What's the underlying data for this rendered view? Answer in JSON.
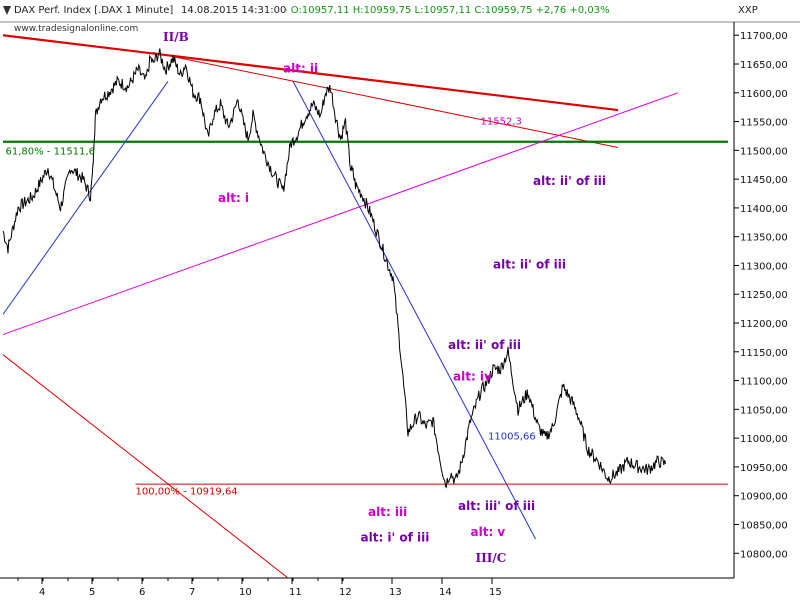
{
  "header": {
    "instrument": "DAX Perf. Index [.DAX  1 Minute]",
    "datetime": "14.08.2015 14:31:00",
    "quote": "- O:10957,11 H:10959,75 L:10957,11 C:10959,75 +2,76 +0,03%",
    "currency": "XXP"
  },
  "watermark": "www.tradesignalonline.com",
  "colors": {
    "price": "#000000",
    "trend_red": "#dd0000",
    "fib_green": "#007700",
    "channel_magenta": "#dd00dd",
    "trend_blue": "#2233cc",
    "label_magenta": "#cc00cc",
    "label_purple": "#7700aa",
    "grid": "#bbbbbb",
    "header_green": "#119911"
  },
  "chart_data": {
    "type": "line",
    "title": "DAX Perf. Index [.DAX  1 Minute]",
    "x_tick_labels": [
      "4",
      "5",
      "6",
      "7",
      "10",
      "11",
      "12",
      "13",
      "14",
      "15"
    ],
    "y_ticks": [
      10800,
      10850,
      10900,
      10950,
      11000,
      11050,
      11100,
      11150,
      11200,
      11250,
      11300,
      11350,
      11400,
      11450,
      11500,
      11550,
      11600,
      11650,
      11700
    ],
    "y_tick_labels": [
      "10800,00",
      "10850,00",
      "10900,00",
      "10950,00",
      "11000,00",
      "11050,00",
      "11100,00",
      "11150,00",
      "11200,00",
      "11250,00",
      "11300,00",
      "11350,00",
      "11400,00",
      "11450,00",
      "11500,00",
      "11550,00",
      "11600,00",
      "11650,00",
      "11700,00"
    ],
    "ylim": [
      10757,
      11723
    ],
    "xlim": [
      0,
      14.5
    ],
    "grid": true,
    "series": [
      {
        "x": [
          0,
          0.1,
          0.3,
          0.6,
          0.9,
          1.15,
          1.35,
          1.6,
          1.75,
          1.8,
          1.82,
          1.85,
          1.95,
          2.1,
          2.3,
          2.5,
          2.7,
          2.85,
          2.95,
          3.0,
          3.12,
          3.25,
          3.4,
          3.55,
          3.65,
          3.8,
          3.95,
          4.1,
          4.2,
          4.35,
          4.5,
          4.6,
          4.7,
          4.8,
          4.9,
          5.0,
          5.1,
          5.2,
          5.4,
          5.6,
          5.75,
          5.9,
          6.05,
          6.2,
          6.35,
          6.45,
          6.55,
          6.65,
          6.75,
          6.85,
          6.95,
          7.0,
          7.05,
          7.2,
          7.35,
          7.55,
          7.7,
          7.8,
          7.95,
          8.1,
          8.3,
          8.45,
          8.6,
          8.75,
          8.85,
          8.95,
          9.05,
          9.15,
          9.35,
          9.55,
          9.7,
          9.8,
          9.95,
          10.1,
          10.3,
          10.5,
          10.7,
          10.85,
          11.0,
          11.2,
          11.4,
          11.5,
          11.7,
          11.9,
          12.1,
          12.3,
          12.5,
          12.7,
          12.9,
          13.1,
          13.25
        ],
        "y": [
          11360,
          11330,
          11400,
          11420,
          11470,
          11400,
          11470,
          11450,
          11420,
          11470,
          11520,
          11560,
          11590,
          11600,
          11620,
          11610,
          11640,
          11620,
          11660,
          11650,
          11670,
          11640,
          11660,
          11630,
          11650,
          11600,
          11590,
          11520,
          11560,
          11580,
          11540,
          11560,
          11590,
          11550,
          11520,
          11560,
          11530,
          11500,
          11460,
          11430,
          11510,
          11530,
          11560,
          11580,
          11560,
          11600,
          11610,
          11560,
          11520,
          11550,
          11470,
          11460,
          11440,
          11420,
          11390,
          11340,
          11300,
          11280,
          11150,
          11010,
          11040,
          11020,
          11030,
          10960,
          10920,
          10940,
          10925,
          10950,
          11030,
          11080,
          11100,
          11120,
          11120,
          11150,
          11050,
          11080,
          11020,
          11000,
          11020,
          11090,
          11060,
          11040,
          10980,
          10960,
          10930,
          10940,
          10960,
          10950,
          10945,
          10960,
          10955
        ]
      }
    ],
    "annotations": [
      {
        "text": "II/B",
        "x": 3.2,
        "y": 11690,
        "color": "#7700aa"
      },
      {
        "text": "alt: ii",
        "x": 5.6,
        "y": 11635,
        "color": "#cc00cc"
      },
      {
        "text": "alt: i",
        "x": 4.3,
        "y": 11410,
        "color": "#cc00cc"
      },
      {
        "text": "11552,3",
        "x": 9.55,
        "y": 11545,
        "color": "#cc00cc"
      },
      {
        "text": "61,80% - 11511,6",
        "x": 0.05,
        "y": 11493,
        "color": "#007700"
      },
      {
        "text": "alt: ii' of iii",
        "x": 10.6,
        "y": 11440,
        "color": "#7700aa"
      },
      {
        "text": "alt: ii' of iii",
        "x": 9.8,
        "y": 11295,
        "color": "#7700aa"
      },
      {
        "text": "alt: ii' of iii",
        "x": 8.9,
        "y": 11155,
        "color": "#7700aa"
      },
      {
        "text": "alt: iv",
        "x": 9.0,
        "y": 11100,
        "color": "#cc00cc"
      },
      {
        "text": "11005,66",
        "x": 9.7,
        "y": 10998,
        "color": "#2233cc"
      },
      {
        "text": "100,00% - 10919,64",
        "x": 2.65,
        "y": 10902,
        "color": "#dd0000"
      },
      {
        "text": "alt: iii",
        "x": 7.3,
        "y": 10865,
        "color": "#cc00cc"
      },
      {
        "text": "alt: i' of iii",
        "x": 7.15,
        "y": 10820,
        "color": "#7700aa"
      },
      {
        "text": "alt: iii' of iii",
        "x": 9.1,
        "y": 10875,
        "color": "#7700aa"
      },
      {
        "text": "alt: v",
        "x": 9.35,
        "y": 10830,
        "color": "#cc00cc"
      },
      {
        "text": "III/C",
        "x": 9.45,
        "y": 10785,
        "color": "#7700aa"
      }
    ],
    "lines": [
      {
        "x1": 0,
        "y1": 11700,
        "x2": 12.3,
        "y2": 11570,
        "color": "#dd0000",
        "width": 2.2
      },
      {
        "x1": 3.0,
        "y1": 11670,
        "x2": 12.3,
        "y2": 11505,
        "color": "#dd0000",
        "width": 1
      },
      {
        "x1": 0,
        "y1": 11515,
        "x2": 14.5,
        "y2": 11515,
        "color": "#007700",
        "width": 2.2
      },
      {
        "x1": 0,
        "y1": 11180,
        "x2": 13.5,
        "y2": 11600,
        "color": "#dd00dd",
        "width": 1
      },
      {
        "x1": 0,
        "y1": 11215,
        "x2": 3.3,
        "y2": 11620,
        "color": "#2233cc",
        "width": 1
      },
      {
        "x1": 5.8,
        "y1": 11620,
        "x2": 10.65,
        "y2": 10825,
        "color": "#2233cc",
        "width": 1
      },
      {
        "x1": 0,
        "y1": 11145,
        "x2": 5.7,
        "y2": 10757,
        "color": "#dd0000",
        "width": 1
      },
      {
        "x1": 2.65,
        "y1": 10920,
        "x2": 14.5,
        "y2": 10920,
        "color": "#dd0000",
        "width": 1
      }
    ]
  }
}
